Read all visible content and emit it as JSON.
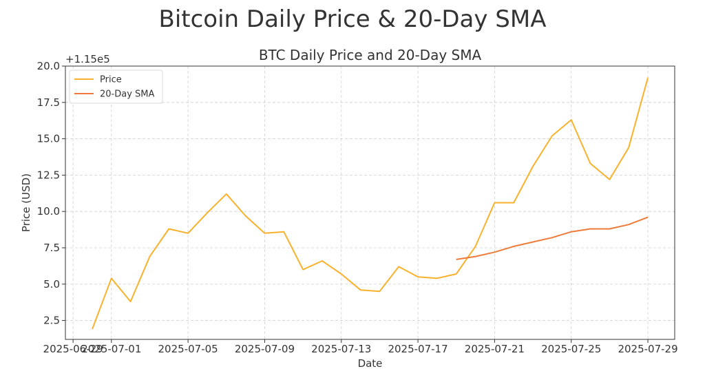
{
  "suptitle": "Bitcoin Daily Price & 20-Day SMA",
  "chart_data": {
    "type": "line",
    "title": "BTC Daily Price and 20-Day SMA",
    "xlabel": "Date",
    "ylabel": "Price (USD)",
    "y_offset_label": "+1.15e5",
    "ylim": [
      1.2,
      20.0
    ],
    "grid": true,
    "legend_position": "upper-left",
    "x_tick_labels": [
      "2025-06-29",
      "2025-07-01",
      "2025-07-05",
      "2025-07-09",
      "2025-07-13",
      "2025-07-17",
      "2025-07-21",
      "2025-07-25",
      "2025-07-29"
    ],
    "y_tick_labels": [
      "2.5",
      "5.0",
      "7.5",
      "10.0",
      "12.5",
      "15.0",
      "17.5",
      "20.0"
    ],
    "y_ticks": [
      2.5,
      5.0,
      7.5,
      10.0,
      12.5,
      15.0,
      17.5,
      20.0
    ],
    "x": [
      "2025-06-30",
      "2025-07-01",
      "2025-07-02",
      "2025-07-03",
      "2025-07-04",
      "2025-07-05",
      "2025-07-06",
      "2025-07-07",
      "2025-07-08",
      "2025-07-09",
      "2025-07-10",
      "2025-07-11",
      "2025-07-12",
      "2025-07-13",
      "2025-07-14",
      "2025-07-15",
      "2025-07-16",
      "2025-07-17",
      "2025-07-18",
      "2025-07-19",
      "2025-07-20",
      "2025-07-21",
      "2025-07-22",
      "2025-07-23",
      "2025-07-24",
      "2025-07-25",
      "2025-07-26",
      "2025-07-27",
      "2025-07-28",
      "2025-07-29"
    ],
    "series": [
      {
        "name": "Price",
        "color": "#F9B12B",
        "values": [
          1.9,
          5.4,
          3.8,
          6.9,
          8.8,
          8.5,
          9.9,
          11.2,
          9.7,
          8.5,
          8.6,
          6.0,
          6.6,
          5.7,
          4.6,
          4.5,
          6.2,
          5.5,
          5.4,
          5.7,
          7.6,
          10.6,
          10.6,
          13.1,
          15.2,
          16.3,
          13.3,
          12.2,
          14.4,
          19.2
        ]
      },
      {
        "name": "20-Day SMA",
        "color": "#EE7A3A",
        "values": [
          null,
          null,
          null,
          null,
          null,
          null,
          null,
          null,
          null,
          null,
          null,
          null,
          null,
          null,
          null,
          null,
          null,
          null,
          null,
          6.7,
          6.9,
          7.2,
          7.6,
          7.9,
          8.2,
          8.6,
          8.8,
          8.8,
          9.1,
          9.6
        ]
      }
    ]
  }
}
